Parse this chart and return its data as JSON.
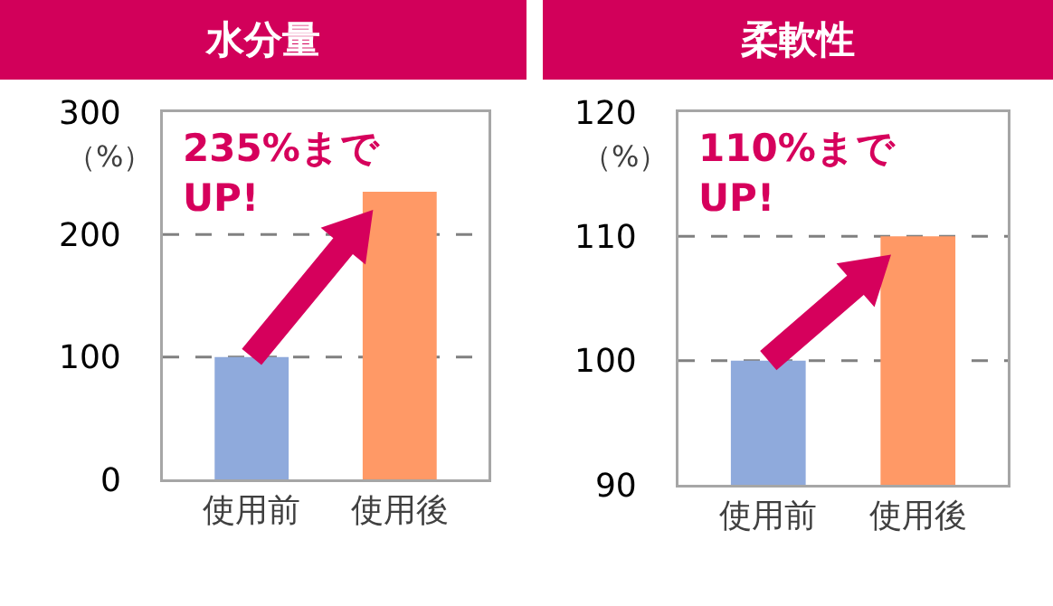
{
  "chart_data": [
    {
      "type": "bar",
      "title": "水分量",
      "ylabel": "（%）",
      "categories": [
        "使用前",
        "使用後"
      ],
      "colors": [
        "#8faadc",
        "#ff9966"
      ],
      "values": [
        100,
        235
      ],
      "ylim": [
        0,
        300
      ],
      "yticks": [
        0,
        100,
        200,
        300
      ],
      "grid": "y",
      "annotations": [
        "235%まで\nUP!"
      ]
    },
    {
      "type": "bar",
      "title": "柔軟性",
      "ylabel": "（%）",
      "categories": [
        "使用前",
        "使用後"
      ],
      "colors": [
        "#8faadc",
        "#ff9966"
      ],
      "values": [
        100,
        110
      ],
      "ylim": [
        90,
        120
      ],
      "yticks": [
        90,
        100,
        110,
        120
      ],
      "grid": "y",
      "annotations": [
        "110%まで\nUP!"
      ]
    }
  ]
}
